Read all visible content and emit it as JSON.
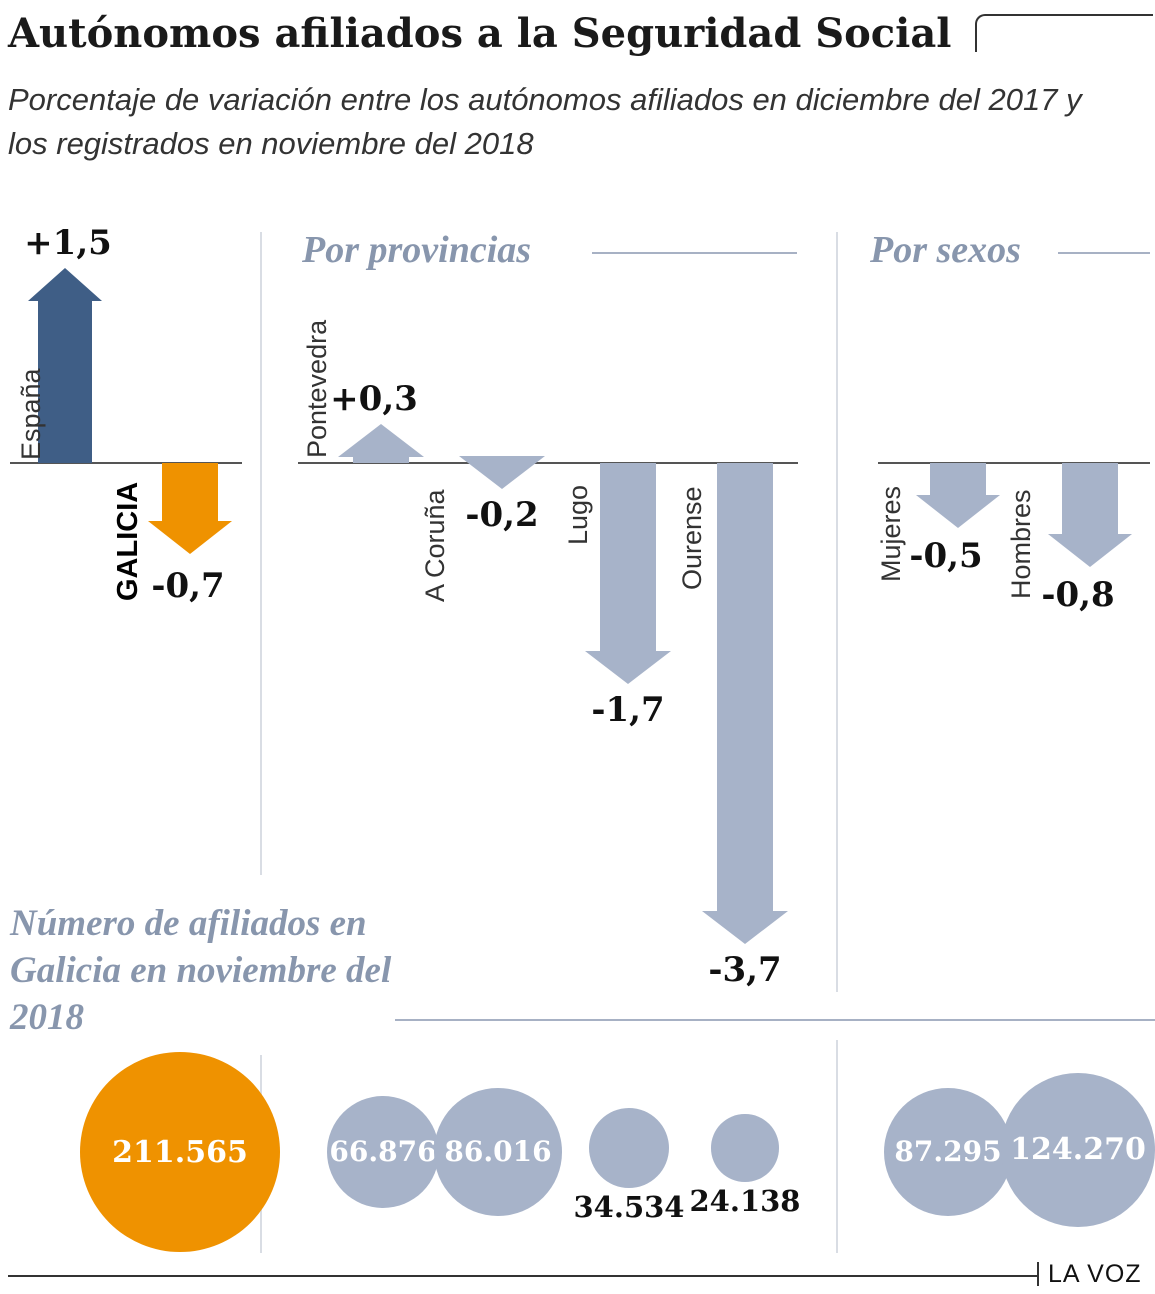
{
  "title": "Autónomos afiliados a la Seguridad Social",
  "subtitle": "Porcentaje de variación entre los autónomos afiliados en diciembre del 2017 y los registrados en noviembre del 2018",
  "headings": {
    "provincias": "Por provincias",
    "sexos": "Por sexos",
    "bubbles": "Número de afiliados en Galicia en noviembre del 2018"
  },
  "brand": "LA VOZ",
  "colors": {
    "spain": "#3f5e86",
    "galicia": "#ef9200",
    "category": "#a7b3c9"
  },
  "chart_data": [
    {
      "type": "bar",
      "categories": [
        "España",
        "GALICIA"
      ],
      "values": [
        1.5,
        -0.7
      ],
      "value_labels": [
        "+1,5",
        "-0,7"
      ]
    },
    {
      "type": "bar",
      "title": "Por provincias",
      "categories": [
        "Pontevedra",
        "A Coruña",
        "Lugo",
        "Ourense"
      ],
      "values": [
        0.3,
        -0.2,
        -1.7,
        -3.7
      ],
      "value_labels": [
        "+0,3",
        "-0,2",
        "-1,7",
        "-3,7"
      ]
    },
    {
      "type": "bar",
      "title": "Por sexos",
      "categories": [
        "Mujeres",
        "Hombres"
      ],
      "values": [
        -0.5,
        -0.8
      ],
      "value_labels": [
        "-0,5",
        "-0,8"
      ]
    },
    {
      "type": "bubble",
      "title": "Número de afiliados en Galicia en noviembre del 2018",
      "values": [
        211565,
        66876,
        86016,
        34534,
        24138,
        87295,
        124270
      ],
      "value_labels": [
        "211.565",
        "66.876",
        "86.016",
        "34.534",
        "24.138",
        "87.295",
        "124.270"
      ]
    }
  ]
}
